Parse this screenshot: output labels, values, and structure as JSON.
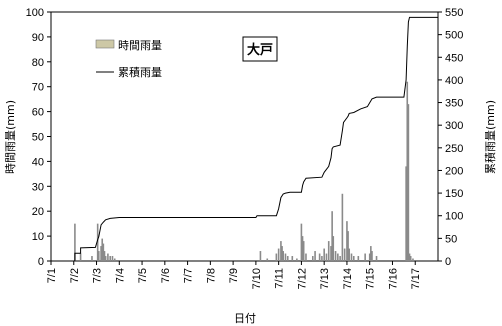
{
  "chart_data": {
    "type": "bar",
    "title": "大戸",
    "xlabel": "日付",
    "ylabel_left": "時間雨量(mm)",
    "ylabel_right": "累積雨量(mm)",
    "ylim_left": [
      0,
      100
    ],
    "ylim_right": [
      0,
      550
    ],
    "yticks_left": [
      0,
      10,
      20,
      30,
      40,
      50,
      60,
      70,
      80,
      90,
      100
    ],
    "yticks_right": [
      0,
      50,
      100,
      150,
      200,
      250,
      300,
      350,
      400,
      450,
      500,
      550
    ],
    "xlim_days": [
      1,
      18
    ],
    "x_ticks": [
      "7/1",
      "7/2",
      "7/3",
      "7/4",
      "7/5",
      "7/6",
      "7/7",
      "7/8",
      "7/9",
      "7/10",
      "7/11",
      "7/12",
      "7/13",
      "7/14",
      "7/15",
      "7/16",
      "7/17"
    ],
    "grid": false,
    "legend": {
      "placement": "top-left",
      "entries": [
        {
          "name": "時間雨量",
          "kind": "bar"
        },
        {
          "name": "累積雨量",
          "kind": "line"
        }
      ]
    },
    "series": [
      {
        "name": "時間雨量",
        "kind": "bar",
        "axis": "left",
        "x_days": [
          2.05,
          2.3,
          2.8,
          3.05,
          3.1,
          3.2,
          3.25,
          3.3,
          3.35,
          3.4,
          3.5,
          3.6,
          3.7,
          3.8,
          10.2,
          10.5,
          10.9,
          11.0,
          11.1,
          11.15,
          11.2,
          11.3,
          11.4,
          11.6,
          11.8,
          12.0,
          12.05,
          12.1,
          12.2,
          12.5,
          12.6,
          12.8,
          12.9,
          13.0,
          13.1,
          13.2,
          13.3,
          13.35,
          13.4,
          13.5,
          13.6,
          13.7,
          13.8,
          13.9,
          14.0,
          14.05,
          14.1,
          14.2,
          14.3,
          14.5,
          14.8,
          15.0,
          15.05,
          15.1,
          15.3,
          16.6,
          16.65,
          16.7,
          16.75,
          16.8,
          16.9
        ],
        "values": [
          15,
          3,
          2,
          15,
          4,
          6,
          9,
          7,
          4,
          2,
          3,
          2,
          2,
          1,
          4,
          1,
          3,
          5,
          8,
          6,
          4,
          3,
          2,
          2,
          1,
          15,
          10,
          8,
          3,
          2,
          4,
          3,
          2,
          5,
          3,
          8,
          6,
          20,
          10,
          4,
          3,
          2,
          27,
          5,
          16,
          12,
          5,
          3,
          2,
          2,
          3,
          3,
          6,
          4,
          2,
          38,
          72,
          63,
          3,
          2,
          1
        ]
      },
      {
        "name": "累積雨量",
        "kind": "line",
        "axis": "right",
        "x_days": [
          1,
          2.05,
          2.05,
          2.3,
          2.3,
          2.95,
          3.05,
          3.1,
          3.2,
          3.3,
          3.4,
          3.6,
          4.0,
          10.0,
          10.05,
          10.9,
          11.0,
          11.1,
          11.2,
          11.3,
          11.5,
          12.0,
          12.05,
          12.1,
          12.2,
          12.9,
          13.0,
          13.2,
          13.3,
          13.35,
          13.4,
          13.7,
          13.8,
          13.85,
          14.0,
          14.05,
          14.1,
          14.3,
          14.6,
          14.9,
          15.1,
          15.3,
          16.5,
          16.6,
          16.65,
          16.7,
          16.75,
          18.0
        ],
        "values": [
          0,
          0,
          17,
          17,
          29,
          30,
          47,
          54,
          80,
          86,
          91,
          94,
          96,
          96,
          100,
          100,
          115,
          140,
          148,
          150,
          152,
          152,
          167,
          175,
          183,
          185,
          196,
          209,
          228,
          248,
          252,
          256,
          288,
          306,
          316,
          320,
          326,
          328,
          336,
          341,
          358,
          362,
          362,
          400,
          475,
          528,
          538,
          538
        ]
      }
    ]
  }
}
